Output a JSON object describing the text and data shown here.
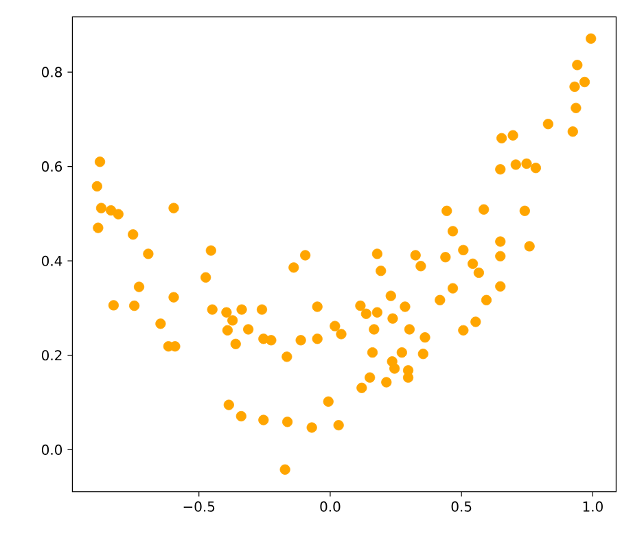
{
  "chart_data": {
    "type": "scatter",
    "marker": "circle",
    "color": "#ffa500",
    "x": [
      -0.877,
      -0.888,
      -0.872,
      -0.884,
      -0.835,
      -0.807,
      -0.825,
      -0.751,
      -0.693,
      -0.728,
      -0.746,
      -0.596,
      -0.596,
      -0.646,
      -0.616,
      -0.591,
      -0.454,
      -0.474,
      -0.449,
      -0.395,
      -0.372,
      -0.337,
      -0.391,
      -0.312,
      -0.36,
      -0.26,
      -0.254,
      -0.225,
      -0.165,
      -0.139,
      -0.095,
      -0.112,
      -0.049,
      -0.049,
      0.018,
      0.042,
      -0.386,
      -0.339,
      -0.254,
      -0.163,
      -0.07,
      -0.007,
      0.032,
      -0.172,
      0.115,
      0.137,
      0.179,
      0.167,
      0.161,
      0.151,
      0.12,
      0.179,
      0.193,
      0.231,
      0.238,
      0.285,
      0.302,
      0.273,
      0.236,
      0.245,
      0.214,
      0.297,
      0.297,
      0.325,
      0.345,
      0.361,
      0.354,
      0.418,
      0.439,
      0.444,
      0.467,
      0.467,
      0.507,
      0.507,
      0.543,
      0.566,
      0.554,
      0.595,
      0.585,
      0.648,
      0.648,
      0.648,
      0.648,
      0.653,
      0.696,
      0.707,
      0.748,
      0.783,
      0.741,
      0.759,
      0.83,
      0.924,
      0.936,
      0.931,
      0.969,
      0.941,
      0.993
    ],
    "values": [
      0.61,
      0.558,
      0.512,
      0.47,
      0.507,
      0.499,
      0.306,
      0.456,
      0.415,
      0.345,
      0.305,
      0.512,
      0.323,
      0.267,
      0.219,
      0.219,
      0.422,
      0.365,
      0.297,
      0.291,
      0.274,
      0.297,
      0.253,
      0.255,
      0.224,
      0.297,
      0.235,
      0.232,
      0.197,
      0.386,
      0.412,
      0.232,
      0.303,
      0.235,
      0.262,
      0.245,
      0.095,
      0.071,
      0.063,
      0.059,
      0.047,
      0.102,
      0.052,
      -0.042,
      0.305,
      0.288,
      0.291,
      0.255,
      0.206,
      0.153,
      0.131,
      0.415,
      0.379,
      0.326,
      0.278,
      0.303,
      0.255,
      0.206,
      0.187,
      0.172,
      0.143,
      0.168,
      0.153,
      0.412,
      0.389,
      0.238,
      0.203,
      0.317,
      0.408,
      0.506,
      0.463,
      0.342,
      0.423,
      0.253,
      0.394,
      0.375,
      0.271,
      0.317,
      0.509,
      0.441,
      0.41,
      0.346,
      0.594,
      0.66,
      0.666,
      0.604,
      0.606,
      0.597,
      0.506,
      0.431,
      0.69,
      0.674,
      0.724,
      0.769,
      0.779,
      0.815,
      0.871
    ],
    "xlim": [
      -0.982,
      1.089
    ],
    "ylim": [
      -0.089,
      0.917
    ],
    "xticks": [
      {
        "value": -0.5,
        "label": "−0.5"
      },
      {
        "value": 0,
        "label": "0.0"
      },
      {
        "value": 0.5,
        "label": "0.5"
      },
      {
        "value": 1.0,
        "label": "1.0"
      }
    ],
    "yticks": [
      {
        "value": 0,
        "label": "0.0"
      },
      {
        "value": 0.2,
        "label": "0.2"
      },
      {
        "value": 0.4,
        "label": "0.4"
      },
      {
        "value": 0.6,
        "label": "0.6"
      },
      {
        "value": 0.8,
        "label": "0.8"
      }
    ]
  }
}
